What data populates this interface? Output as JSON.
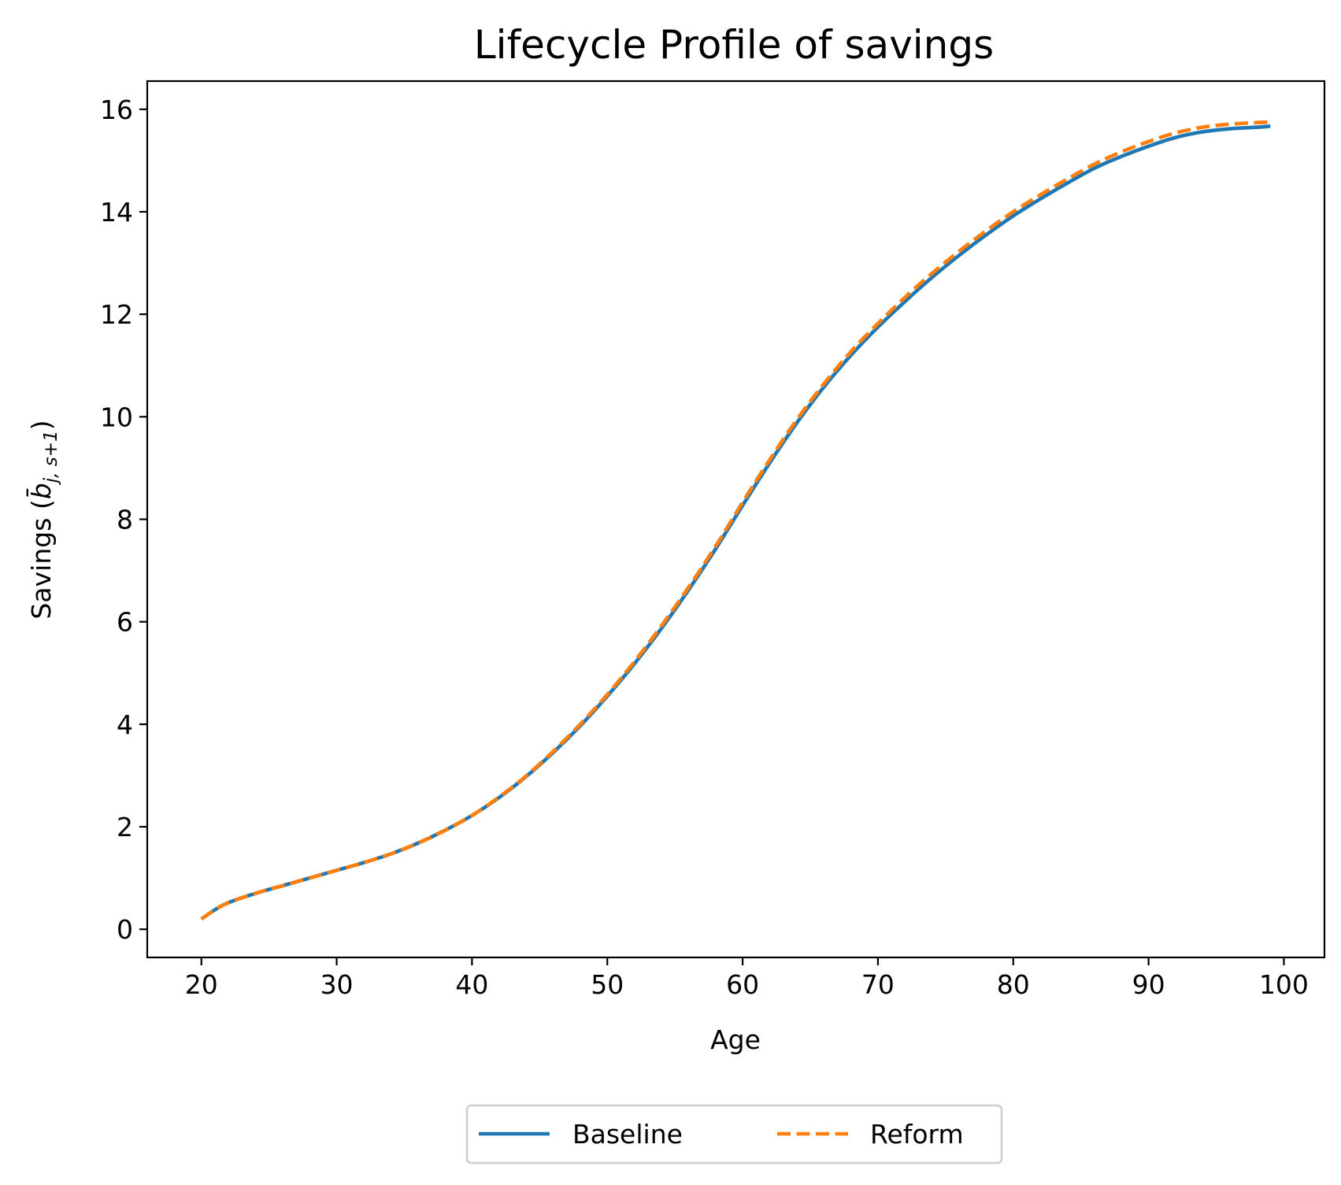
{
  "chart_data": {
    "type": "line",
    "title": "Lifecycle Profile of savings",
    "xlabel": "Age",
    "ylabel": "Savings",
    "ylabel_math": {
      "open": "(",
      "base": "b̄",
      "sub": "j, s+1",
      "close": ")"
    },
    "xlim": [
      16,
      103
    ],
    "ylim": [
      -0.55,
      16.55
    ],
    "xticks": [
      20,
      30,
      40,
      50,
      60,
      70,
      80,
      90,
      100
    ],
    "xtick_labels": [
      "20",
      "30",
      "40",
      "50",
      "60",
      "70",
      "80",
      "90",
      "100"
    ],
    "yticks": [
      0,
      2,
      4,
      6,
      8,
      10,
      12,
      14,
      16
    ],
    "ytick_labels": [
      "0",
      "2",
      "4",
      "6",
      "8",
      "10",
      "12",
      "14",
      "16"
    ],
    "grid": false,
    "legend_position": "bottom-center",
    "legend": [
      "Baseline",
      "Reform"
    ],
    "x": [
      20,
      21,
      22,
      24,
      26,
      28,
      30,
      32,
      34,
      36,
      38,
      40,
      42,
      44,
      46,
      48,
      50,
      52,
      54,
      56,
      58,
      60,
      62,
      64,
      66,
      68,
      70,
      72,
      74,
      76,
      78,
      80,
      82,
      84,
      86,
      88,
      90,
      92,
      94,
      96,
      98,
      99
    ],
    "series": [
      {
        "name": "Baseline",
        "color": "#1f77b4",
        "style": "solid",
        "values": [
          0.2,
          0.38,
          0.52,
          0.7,
          0.85,
          1.0,
          1.15,
          1.3,
          1.47,
          1.68,
          1.93,
          2.22,
          2.57,
          2.98,
          3.45,
          3.97,
          4.55,
          5.18,
          5.87,
          6.62,
          7.42,
          8.27,
          9.1,
          9.88,
          10.58,
          11.2,
          11.75,
          12.25,
          12.72,
          13.15,
          13.55,
          13.92,
          14.25,
          14.56,
          14.85,
          15.08,
          15.28,
          15.45,
          15.56,
          15.62,
          15.65,
          15.67
        ]
      },
      {
        "name": "Reform",
        "color": "#ff7f0e",
        "style": "dashed",
        "values": [
          0.2,
          0.38,
          0.52,
          0.7,
          0.85,
          1.0,
          1.15,
          1.3,
          1.47,
          1.68,
          1.93,
          2.22,
          2.58,
          2.99,
          3.47,
          4.0,
          4.58,
          5.22,
          5.92,
          6.67,
          7.47,
          8.33,
          9.16,
          9.94,
          10.64,
          11.27,
          11.82,
          12.33,
          12.8,
          13.23,
          13.63,
          14.0,
          14.33,
          14.64,
          14.93,
          15.17,
          15.37,
          15.54,
          15.65,
          15.71,
          15.74,
          15.75
        ]
      }
    ]
  }
}
